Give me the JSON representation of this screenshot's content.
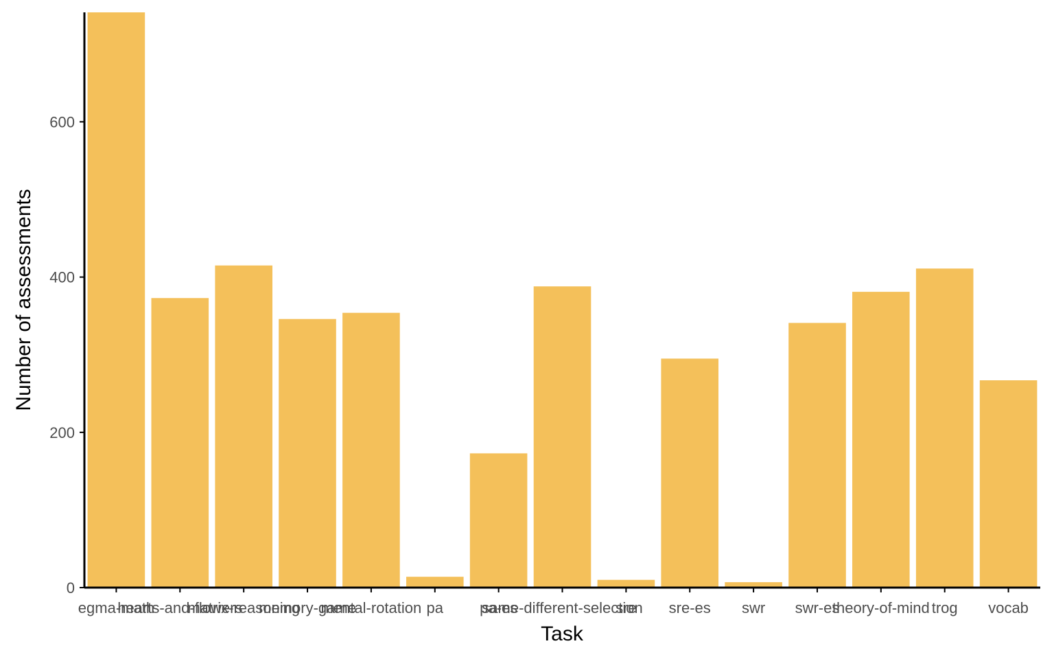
{
  "chart_data": {
    "type": "bar",
    "title": "",
    "xlabel": "Task",
    "ylabel": "Number of assessments",
    "categories": [
      "egma-math",
      "hearts-and-flowers",
      "matrix-reasoning",
      "memory-game",
      "mental-rotation",
      "pa",
      "pa-es",
      "same-different-selection",
      "sre",
      "sre-es",
      "swr",
      "swr-es",
      "theory-of-mind",
      "trog",
      "vocab"
    ],
    "values": [
      741,
      373,
      415,
      346,
      354,
      14,
      173,
      388,
      10,
      295,
      7,
      341,
      381,
      411,
      267
    ],
    "ylim": [
      0,
      741
    ],
    "yticks": [
      0,
      200,
      400,
      600
    ],
    "grid": false,
    "legend": "none",
    "colors": {
      "bar": "#F4C05A",
      "axis": "#000000",
      "tick_text": "#4d4d4d"
    }
  }
}
